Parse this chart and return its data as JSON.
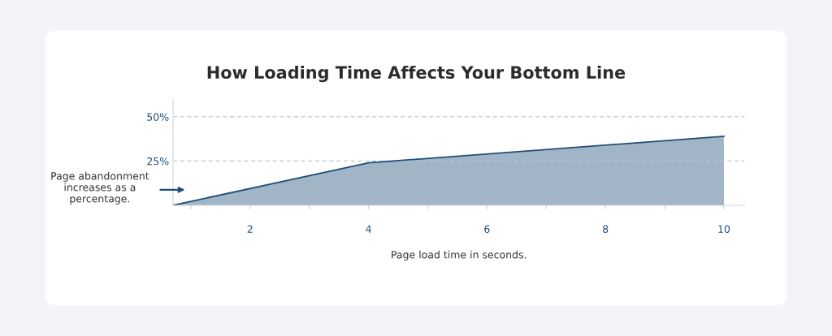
{
  "chart_data": {
    "type": "area",
    "title": "How Loading Time Affects Your Bottom Line",
    "xlabel": "Page load time in seconds.",
    "ylabel": "Page abandonment increases as a percentage.",
    "x": [
      0.7,
      4,
      10
    ],
    "values": [
      0,
      24,
      39
    ],
    "color": "#1f4e79",
    "xlim": [
      0.7,
      10.35
    ],
    "ylim": [
      0,
      60
    ],
    "xticks": [
      {
        "value": 1,
        "label": null
      },
      2,
      {
        "value": 3,
        "label": null
      },
      4,
      {
        "value": 5,
        "label": null
      },
      6,
      {
        "value": 7,
        "label": null
      },
      8,
      {
        "value": 9,
        "label": null
      },
      10
    ],
    "yticks": [
      {
        "value": 25,
        "label": "25%"
      },
      {
        "value": 50,
        "label": "50%"
      }
    ],
    "grid": "y"
  }
}
